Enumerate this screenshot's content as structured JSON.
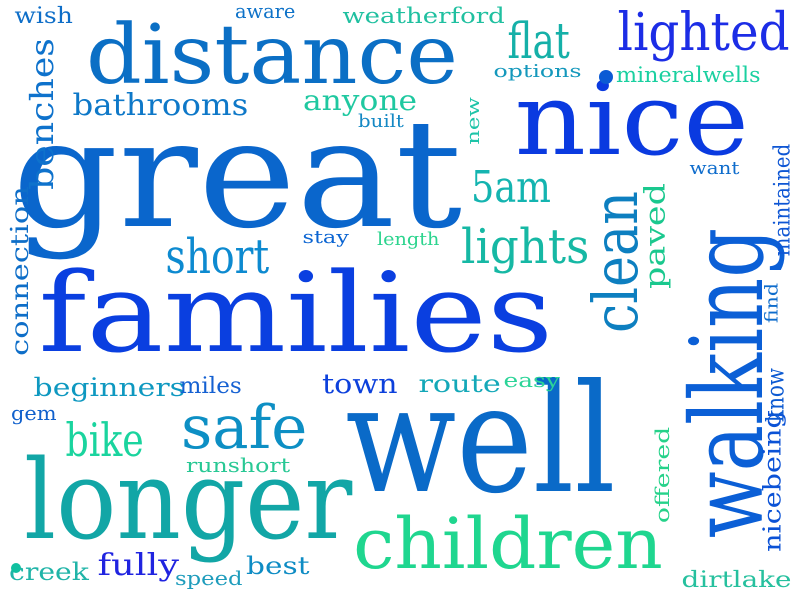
{
  "word_cloud": {
    "words": [
      {
        "text": "great",
        "color": "#0a66cc"
      },
      {
        "text": "families",
        "color": "#0a3fe0"
      },
      {
        "text": "well",
        "color": "#0a6ac8"
      },
      {
        "text": "distance",
        "color": "#0b6fc5"
      },
      {
        "text": "nice",
        "color": "#0a3ae0"
      },
      {
        "text": "longer",
        "color": "#12a6a6"
      },
      {
        "text": "walking",
        "color": "#0b5fd6"
      },
      {
        "text": "children",
        "color": "#1fd68f"
      },
      {
        "text": "lighted",
        "color": "#1c2de6"
      },
      {
        "text": "clean",
        "color": "#0d7fc0"
      },
      {
        "text": "safe",
        "color": "#0d8fc4"
      },
      {
        "text": "lights",
        "color": "#16b8a4"
      },
      {
        "text": "short",
        "color": "#0d8ad0"
      },
      {
        "text": "bike",
        "color": "#1ad49e"
      },
      {
        "text": "flat",
        "color": "#15b0a8"
      },
      {
        "text": "5am",
        "color": "#14b4b0"
      },
      {
        "text": "bathrooms",
        "color": "#0e78c8"
      },
      {
        "text": "benches",
        "color": "#0e72cc"
      },
      {
        "text": "paved",
        "color": "#1ac88e"
      },
      {
        "text": "anyone",
        "color": "#1fc8a0"
      },
      {
        "text": "fully",
        "color": "#2024e0"
      },
      {
        "text": "connection",
        "color": "#0e6ec8"
      },
      {
        "text": "nicebeing",
        "color": "#0b52d6"
      },
      {
        "text": "beginners",
        "color": "#0e98c0"
      },
      {
        "text": "route",
        "color": "#14a8b8"
      },
      {
        "text": "town",
        "color": "#0c40dc"
      },
      {
        "text": "maintained",
        "color": "#0e56d4"
      },
      {
        "text": "know",
        "color": "#0c5ad2"
      },
      {
        "text": "offered",
        "color": "#26d28a"
      },
      {
        "text": "weatherford",
        "color": "#20c0a0"
      },
      {
        "text": "mineralwells",
        "color": "#1ad0a0"
      },
      {
        "text": "options",
        "color": "#1498bc"
      },
      {
        "text": "new",
        "color": "#1ec4a8"
      },
      {
        "text": "built",
        "color": "#1488c4"
      },
      {
        "text": "want",
        "color": "#0e6ccc"
      },
      {
        "text": "stay",
        "color": "#0a64d2"
      },
      {
        "text": "length",
        "color": "#2cd48e"
      },
      {
        "text": "find",
        "color": "#0e6ccc"
      },
      {
        "text": "wish",
        "color": "#0e6ec8"
      },
      {
        "text": "aware",
        "color": "#0e72c8"
      },
      {
        "text": "miles",
        "color": "#1460d2"
      },
      {
        "text": "gem",
        "color": "#1060cc"
      },
      {
        "text": "easy",
        "color": "#2cd498"
      },
      {
        "text": "runshort",
        "color": "#28c894"
      },
      {
        "text": "creek",
        "color": "#20b4a8"
      },
      {
        "text": "speed",
        "color": "#1e9cbc"
      },
      {
        "text": "best",
        "color": "#0e8cc4"
      },
      {
        "text": "dirtlake",
        "color": "#26c09e"
      }
    ],
    "dots": [
      {
        "color": "#0b5ad4"
      },
      {
        "color": "#10c0a0"
      }
    ]
  }
}
